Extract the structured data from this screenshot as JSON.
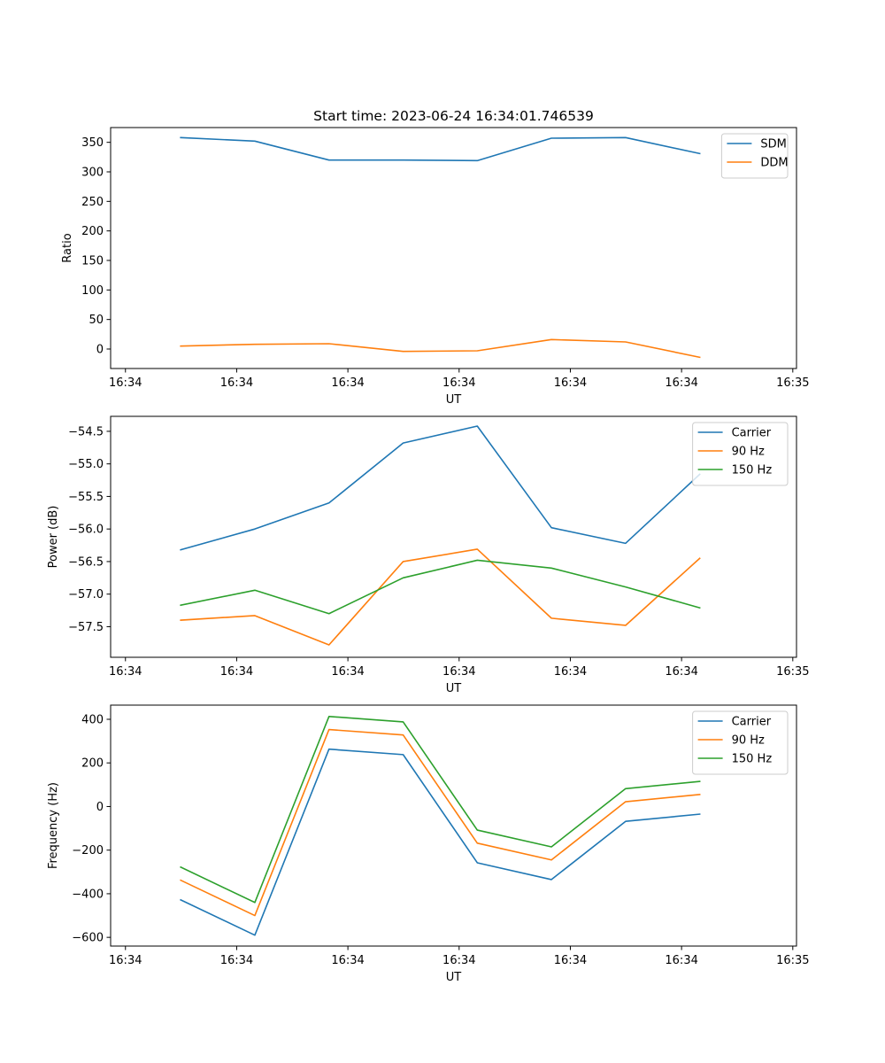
{
  "chart_data": [
    {
      "type": "line",
      "title": "Start time: 2023-06-24 16:34:01.746539",
      "xlabel": "UT",
      "ylabel": "Ratio",
      "x": [
        0.745,
        1.745,
        2.745,
        3.745,
        4.745,
        5.745,
        6.745,
        7.745
      ],
      "xlim": [
        -0.2,
        9.05
      ],
      "x_ticks": [
        0,
        1.5,
        3,
        4.5,
        6,
        7.5,
        9
      ],
      "x_tick_labels": [
        "16:34",
        "16:34",
        "16:34",
        "16:34",
        "16:34",
        "16:34",
        "16:35"
      ],
      "ylim": [
        -33,
        375
      ],
      "y_ticks": [
        0,
        50,
        100,
        150,
        200,
        250,
        300,
        350
      ],
      "y_tick_labels": [
        "0",
        "50",
        "100",
        "150",
        "200",
        "250",
        "300",
        "350"
      ],
      "legend_position": "top-right",
      "grid": false,
      "series": [
        {
          "name": "SDM",
          "color": "#1f77b4",
          "values": [
            358,
            352,
            320,
            320,
            319,
            357,
            358,
            331
          ]
        },
        {
          "name": "DDM",
          "color": "#ff7f0e",
          "values": [
            5,
            8,
            9,
            -4,
            -3,
            16,
            12,
            -14
          ]
        }
      ]
    },
    {
      "type": "line",
      "title": "",
      "xlabel": "UT",
      "ylabel": "Power (dB)",
      "x": [
        0.745,
        1.745,
        2.745,
        3.745,
        4.745,
        5.745,
        6.745,
        7.745
      ],
      "xlim": [
        -0.2,
        9.05
      ],
      "x_ticks": [
        0,
        1.5,
        3,
        4.5,
        6,
        7.5,
        9
      ],
      "x_tick_labels": [
        "16:34",
        "16:34",
        "16:34",
        "16:34",
        "16:34",
        "16:34",
        "16:35"
      ],
      "ylim": [
        -57.97,
        -54.27
      ],
      "y_ticks": [
        -57.5,
        -57.0,
        -56.5,
        -56.0,
        -55.5,
        -55.0,
        -54.5
      ],
      "y_tick_labels": [
        "−57.5",
        "−57.0",
        "−56.5",
        "−56.0",
        "−55.5",
        "−55.0",
        "−54.5"
      ],
      "legend_position": "top-right",
      "grid": false,
      "series": [
        {
          "name": "Carrier",
          "color": "#1f77b4",
          "values": [
            -56.32,
            -56.0,
            -55.6,
            -54.68,
            -54.42,
            -55.98,
            -56.22,
            -55.16
          ]
        },
        {
          "name": "90 Hz",
          "color": "#ff7f0e",
          "values": [
            -57.4,
            -57.33,
            -57.78,
            -56.5,
            -56.31,
            -57.37,
            -57.48,
            -56.45
          ]
        },
        {
          "name": "150 Hz",
          "color": "#2ca02c",
          "values": [
            -57.17,
            -56.94,
            -57.3,
            -56.75,
            -56.48,
            -56.6,
            -56.89,
            -57.21
          ]
        }
      ]
    },
    {
      "type": "line",
      "title": "",
      "xlabel": "UT",
      "ylabel": "Frequency (Hz)",
      "x": [
        0.745,
        1.745,
        2.745,
        3.745,
        4.745,
        5.745,
        6.745,
        7.745
      ],
      "xlim": [
        -0.2,
        9.05
      ],
      "x_ticks": [
        0,
        1.5,
        3,
        4.5,
        6,
        7.5,
        9
      ],
      "x_tick_labels": [
        "16:34",
        "16:34",
        "16:34",
        "16:34",
        "16:34",
        "16:34",
        "16:35"
      ],
      "ylim": [
        -640,
        465
      ],
      "y_ticks": [
        -600,
        -400,
        -200,
        0,
        200,
        400
      ],
      "y_tick_labels": [
        "−600",
        "−400",
        "−200",
        "0",
        "200",
        "400"
      ],
      "legend_position": "top-right",
      "grid": false,
      "series": [
        {
          "name": "Carrier",
          "color": "#1f77b4",
          "values": [
            -428,
            -590,
            263,
            238,
            -258,
            -335,
            -68,
            -35
          ]
        },
        {
          "name": "90 Hz",
          "color": "#ff7f0e",
          "values": [
            -338,
            -500,
            353,
            328,
            -168,
            -245,
            22,
            55
          ]
        },
        {
          "name": "150 Hz",
          "color": "#2ca02c",
          "values": [
            -278,
            -440,
            413,
            388,
            -108,
            -185,
            82,
            115
          ]
        }
      ]
    }
  ]
}
